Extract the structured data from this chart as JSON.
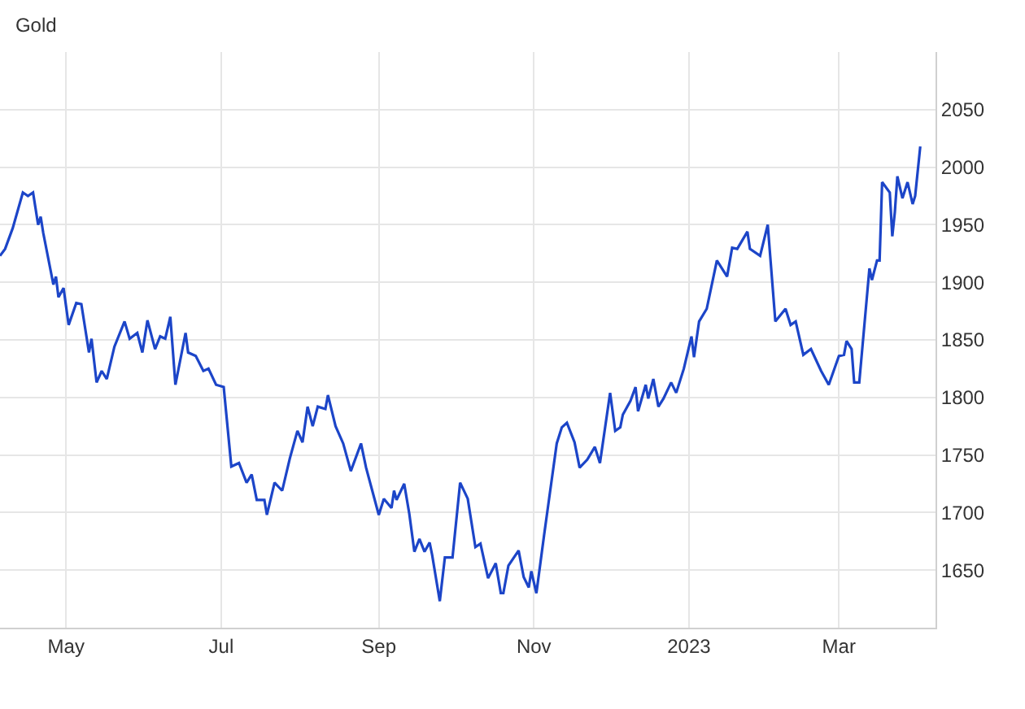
{
  "chart_data": {
    "type": "line",
    "title": "Gold",
    "x": [
      "2022-04-05",
      "2022-04-07",
      "2022-04-10",
      "2022-04-14",
      "2022-04-16",
      "2022-04-18",
      "2022-04-20",
      "2022-04-21",
      "2022-04-22",
      "2022-04-26",
      "2022-04-27",
      "2022-04-28",
      "2022-04-30",
      "2022-05-02",
      "2022-05-05",
      "2022-05-07",
      "2022-05-10",
      "2022-05-11",
      "2022-05-13",
      "2022-05-15",
      "2022-05-17",
      "2022-05-20",
      "2022-05-24",
      "2022-05-26",
      "2022-05-29",
      "2022-05-31",
      "2022-06-02",
      "2022-06-05",
      "2022-06-07",
      "2022-06-09",
      "2022-06-11",
      "2022-06-13",
      "2022-06-17",
      "2022-06-18",
      "2022-06-21",
      "2022-06-24",
      "2022-06-26",
      "2022-06-29",
      "2022-07-02",
      "2022-07-05",
      "2022-07-08",
      "2022-07-11",
      "2022-07-13",
      "2022-07-15",
      "2022-07-18",
      "2022-07-19",
      "2022-07-22",
      "2022-07-25",
      "2022-07-28",
      "2022-07-31",
      "2022-08-02",
      "2022-08-04",
      "2022-08-06",
      "2022-08-08",
      "2022-08-11",
      "2022-08-12",
      "2022-08-15",
      "2022-08-18",
      "2022-08-21",
      "2022-08-25",
      "2022-08-27",
      "2022-09-01",
      "2022-09-03",
      "2022-09-06",
      "2022-09-07",
      "2022-09-08",
      "2022-09-11",
      "2022-09-13",
      "2022-09-15",
      "2022-09-17",
      "2022-09-19",
      "2022-09-21",
      "2022-09-22",
      "2022-09-25",
      "2022-09-27",
      "2022-09-30",
      "2022-10-03",
      "2022-10-06",
      "2022-10-09",
      "2022-10-11",
      "2022-10-14",
      "2022-10-17",
      "2022-10-19",
      "2022-10-20",
      "2022-10-22",
      "2022-10-26",
      "2022-10-28",
      "2022-10-30",
      "2022-10-31",
      "2022-11-02",
      "2022-11-05",
      "2022-11-07",
      "2022-11-10",
      "2022-11-12",
      "2022-11-14",
      "2022-11-17",
      "2022-11-19",
      "2022-11-22",
      "2022-11-25",
      "2022-11-27",
      "2022-12-01",
      "2022-12-03",
      "2022-12-05",
      "2022-12-06",
      "2022-12-09",
      "2022-12-11",
      "2022-12-12",
      "2022-12-15",
      "2022-12-16",
      "2022-12-18",
      "2022-12-20",
      "2022-12-22",
      "2022-12-25",
      "2022-12-27",
      "2022-12-30",
      "2023-01-02",
      "2023-01-03",
      "2023-01-05",
      "2023-01-08",
      "2023-01-12",
      "2023-01-16",
      "2023-01-18",
      "2023-01-20",
      "2023-01-24",
      "2023-01-25",
      "2023-01-29",
      "2023-02-01",
      "2023-02-04",
      "2023-02-08",
      "2023-02-10",
      "2023-02-12",
      "2023-02-15",
      "2023-02-18",
      "2023-02-22",
      "2023-02-25",
      "2023-03-01",
      "2023-03-03",
      "2023-03-04",
      "2023-03-06",
      "2023-03-07",
      "2023-03-09",
      "2023-03-13",
      "2023-03-14",
      "2023-03-16",
      "2023-03-17",
      "2023-03-18",
      "2023-03-21",
      "2023-03-22",
      "2023-03-23",
      "2023-03-24",
      "2023-03-26",
      "2023-03-28",
      "2023-03-30",
      "2023-03-31",
      "2023-04-02"
    ],
    "series": [
      {
        "color": "#1c45c8",
        "values": [
          1923,
          1929,
          1947,
          1978,
          1975,
          1978,
          1950,
          1957,
          1943,
          1898,
          1905,
          1887,
          1895,
          1863,
          1882,
          1881,
          1839,
          1851,
          1813,
          1823,
          1816,
          1844,
          1866,
          1851,
          1856,
          1839,
          1867,
          1842,
          1853,
          1851,
          1870,
          1811,
          1856,
          1839,
          1836,
          1823,
          1825,
          1811,
          1809,
          1740,
          1743,
          1726,
          1733,
          1711,
          1711,
          1698,
          1726,
          1719,
          1747,
          1771,
          1761,
          1792,
          1775,
          1792,
          1790,
          1802,
          1775,
          1760,
          1736,
          1760,
          1739,
          1698,
          1712,
          1704,
          1719,
          1711,
          1725,
          1699,
          1666,
          1677,
          1666,
          1674,
          1663,
          1623,
          1661,
          1661,
          1726,
          1712,
          1670,
          1673,
          1643,
          1656,
          1630,
          1630,
          1654,
          1667,
          1644,
          1635,
          1649,
          1630,
          1680,
          1712,
          1760,
          1774,
          1778,
          1761,
          1739,
          1746,
          1757,
          1743,
          1804,
          1771,
          1774,
          1785,
          1797,
          1809,
          1788,
          1811,
          1799,
          1816,
          1792,
          1799,
          1813,
          1804,
          1825,
          1853,
          1835,
          1866,
          1877,
          1919,
          1905,
          1930,
          1929,
          1944,
          1929,
          1923,
          1950,
          1866,
          1877,
          1863,
          1866,
          1837,
          1842,
          1823,
          1811,
          1836,
          1837,
          1849,
          1842,
          1813,
          1813,
          1912,
          1902,
          1919,
          1919,
          1987,
          1978,
          1940,
          1961,
          1992,
          1973,
          1987,
          1968,
          1975,
          2018
        ]
      }
    ],
    "xlim": [
      "2022-04-05",
      "2023-04-08"
    ],
    "xticks": [
      {
        "value": "2022-05-01",
        "label": "May"
      },
      {
        "value": "2022-07-01",
        "label": "Jul"
      },
      {
        "value": "2022-09-01",
        "label": "Sep"
      },
      {
        "value": "2022-11-01",
        "label": "Nov"
      },
      {
        "value": "2023-01-01",
        "label": "2023"
      },
      {
        "value": "2023-03-01",
        "label": "Mar"
      }
    ],
    "ylim": [
      1600,
      2100
    ],
    "yticks": [
      1650,
      1700,
      1750,
      1800,
      1850,
      1900,
      1950,
      2000,
      2050
    ],
    "grid": true,
    "marker": "none",
    "line_style": "solid"
  }
}
